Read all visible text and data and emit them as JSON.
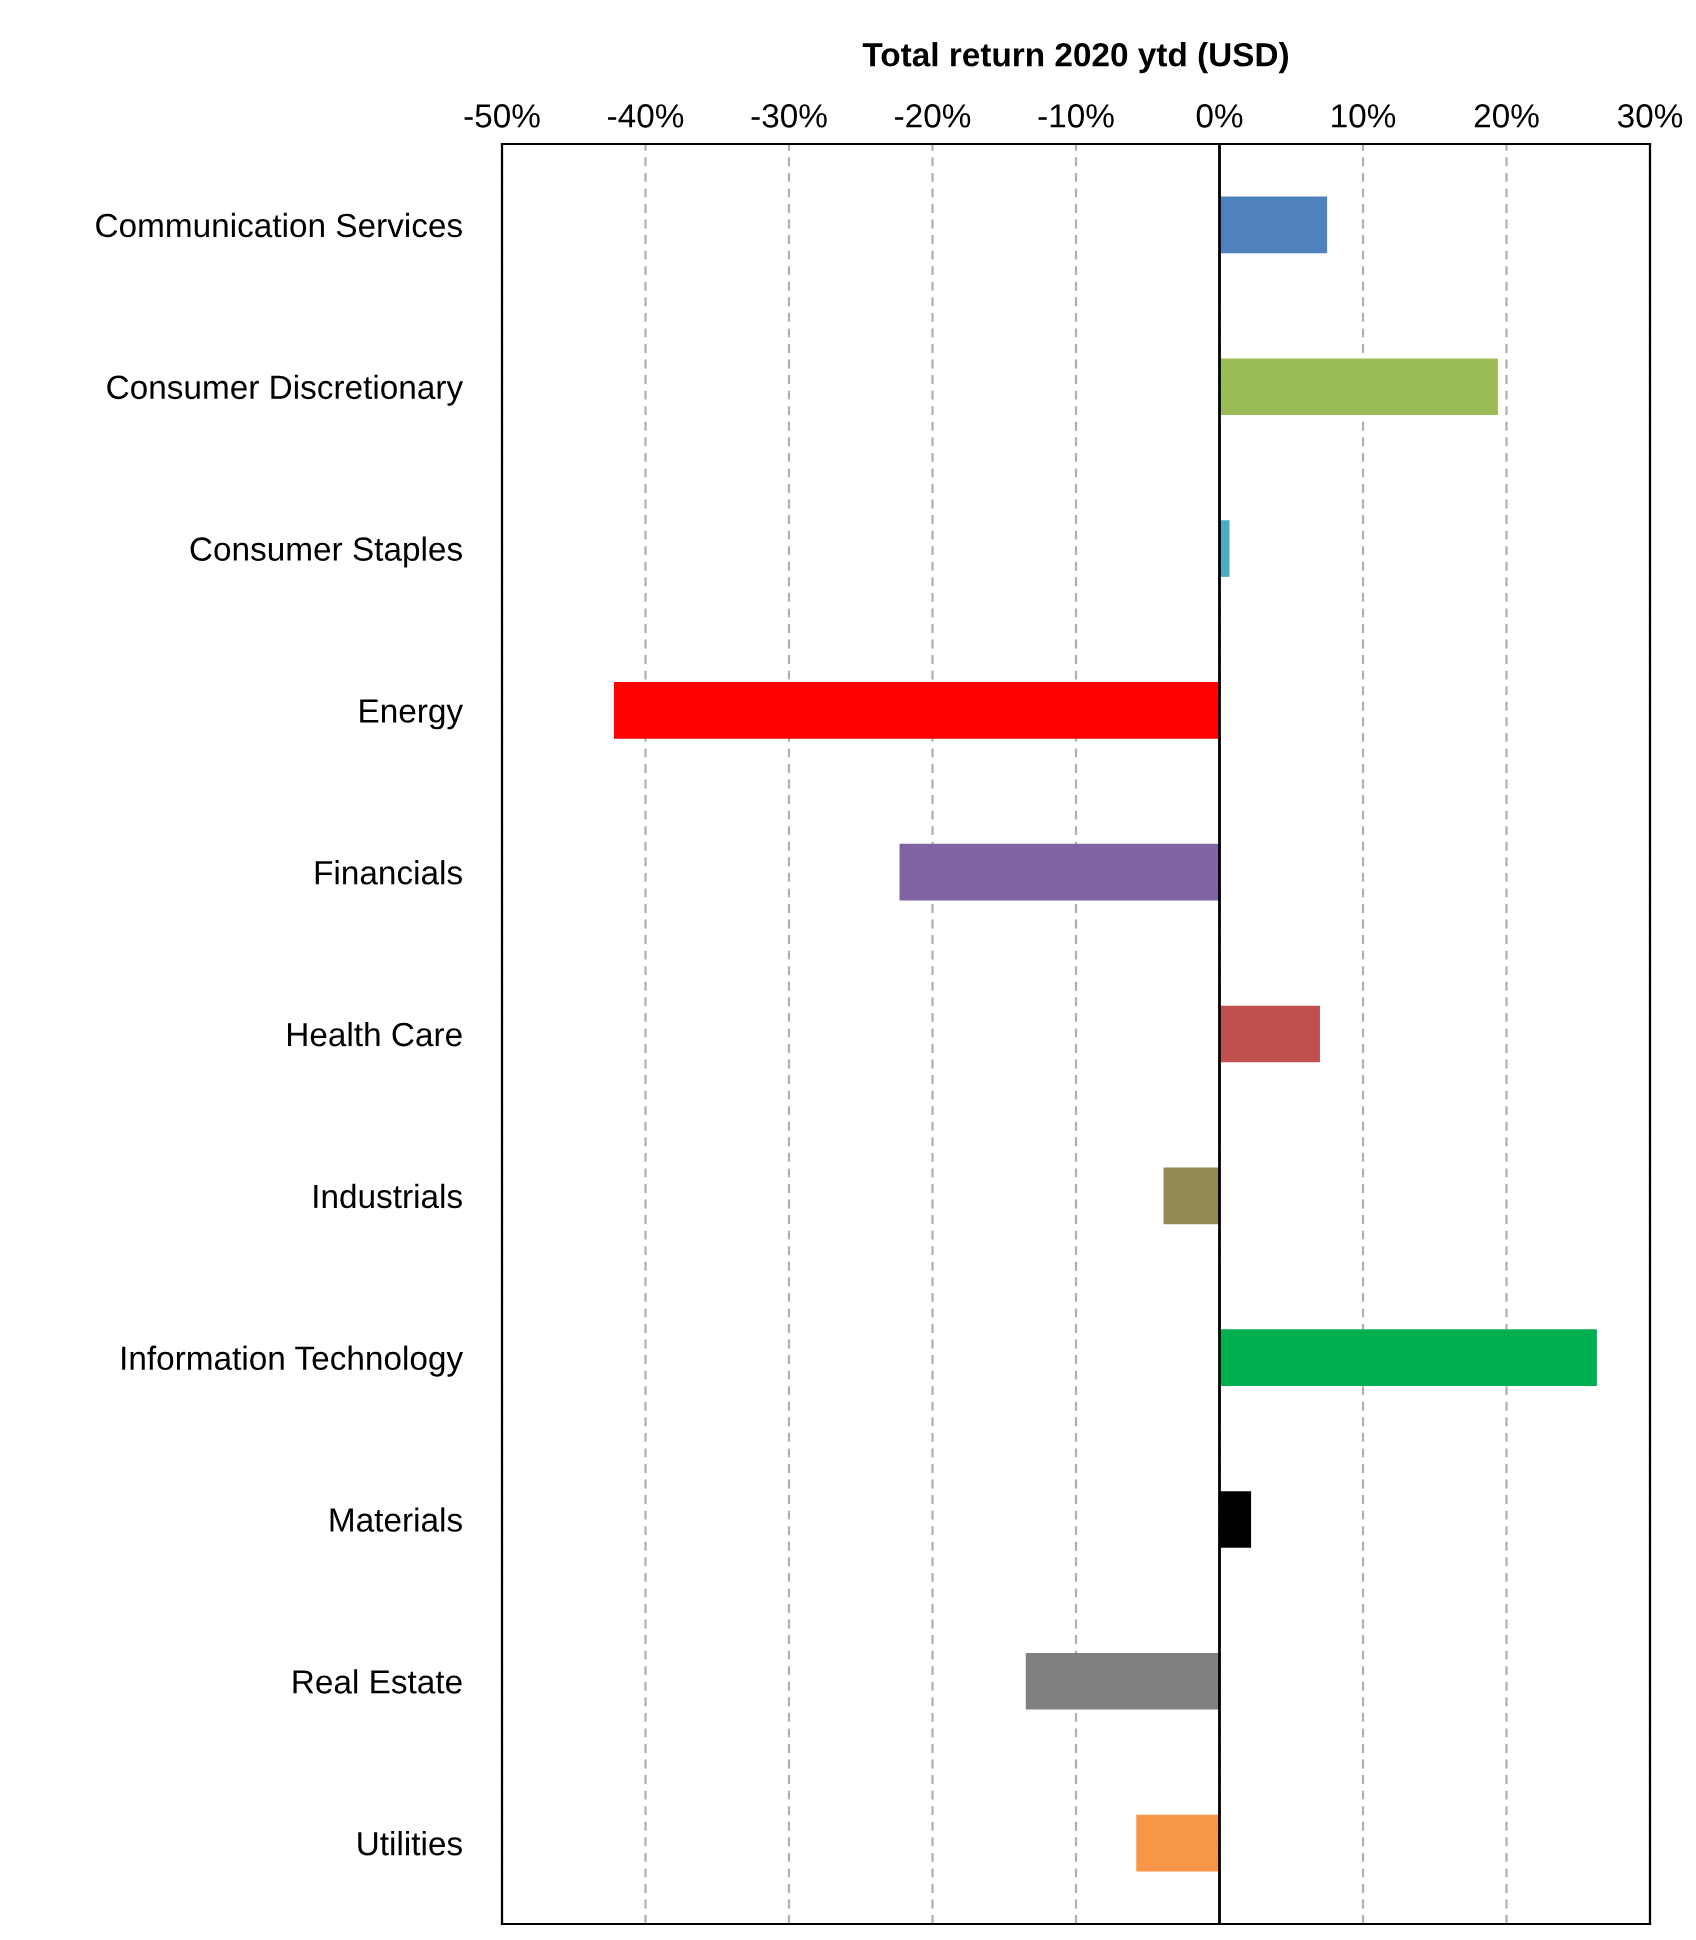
{
  "chart_data": {
    "type": "bar",
    "orientation": "horizontal",
    "title": "Total return 2020 ytd (USD)",
    "categories": [
      "Communication Services",
      "Consumer Discretionary",
      "Consumer Staples",
      "Energy",
      "Financials",
      "Health Care",
      "Industrials",
      "Information Technology",
      "Materials",
      "Real Estate",
      "Utilities"
    ],
    "values": [
      7.5,
      19.4,
      0.7,
      -42.2,
      -22.3,
      7.0,
      -3.9,
      26.3,
      2.2,
      -13.5,
      -5.8
    ],
    "colors": [
      "#4f81bd",
      "#9bbb59",
      "#4bacc6",
      "#ff0000",
      "#8064a2",
      "#c0504d",
      "#948a54",
      "#00b050",
      "#000000",
      "#808080",
      "#f79646"
    ],
    "xlim": [
      -50,
      30
    ],
    "xticks": [
      {
        "value": -50,
        "label": "-50%"
      },
      {
        "value": -40,
        "label": "-40%"
      },
      {
        "value": -30,
        "label": "-30%"
      },
      {
        "value": -20,
        "label": "-20%"
      },
      {
        "value": -10,
        "label": "-10%"
      },
      {
        "value": 0,
        "label": "0%"
      },
      {
        "value": 10,
        "label": "10%"
      },
      {
        "value": 20,
        "label": "20%"
      },
      {
        "value": 30,
        "label": "30%"
      }
    ],
    "grid": "x",
    "legend": false
  }
}
